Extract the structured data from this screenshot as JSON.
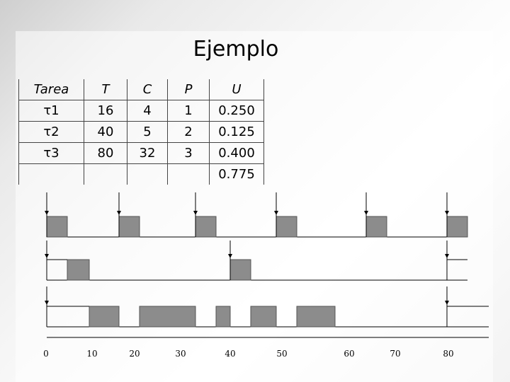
{
  "slide": {
    "title": "Ejemplo"
  },
  "table": {
    "headers": [
      "Tarea",
      "T",
      "C",
      "P",
      "U"
    ],
    "rows": [
      [
        "τ1",
        "16",
        "4",
        "1",
        "0.250"
      ],
      [
        "τ2",
        "40",
        "5",
        "2",
        "0.125"
      ],
      [
        "τ3",
        "80",
        "32",
        "3",
        "0.400"
      ],
      [
        "",
        "",
        "",
        "",
        "0.775"
      ]
    ]
  },
  "chart_data": {
    "type": "gantt",
    "x_ticks": [
      "0",
      "10",
      "20",
      "30",
      "40",
      "50",
      "60",
      "70",
      "80"
    ],
    "xlim": [
      0,
      80
    ],
    "tasks": [
      {
        "name": "τ1",
        "period": 16,
        "arrivals": [
          0,
          16,
          32,
          48,
          64,
          80
        ],
        "executions": [
          [
            0,
            4
          ],
          [
            16,
            20
          ],
          [
            32,
            36
          ],
          [
            48,
            52
          ],
          [
            64,
            68
          ],
          [
            80,
            84
          ]
        ]
      },
      {
        "name": "τ2",
        "period": 40,
        "arrivals": [
          0,
          40,
          80
        ],
        "executions": [
          [
            4,
            9
          ],
          [
            40,
            45
          ]
        ]
      },
      {
        "name": "τ3",
        "period": 80,
        "arrivals": [
          0,
          80
        ],
        "executions": [
          [
            9,
            16
          ],
          [
            20,
            32
          ],
          [
            36,
            40
          ],
          [
            45,
            48
          ],
          [
            52,
            58
          ]
        ]
      }
    ],
    "colors": {
      "bar": "#8c8c8c",
      "bar_border": "#555555",
      "line": "#000000"
    }
  }
}
